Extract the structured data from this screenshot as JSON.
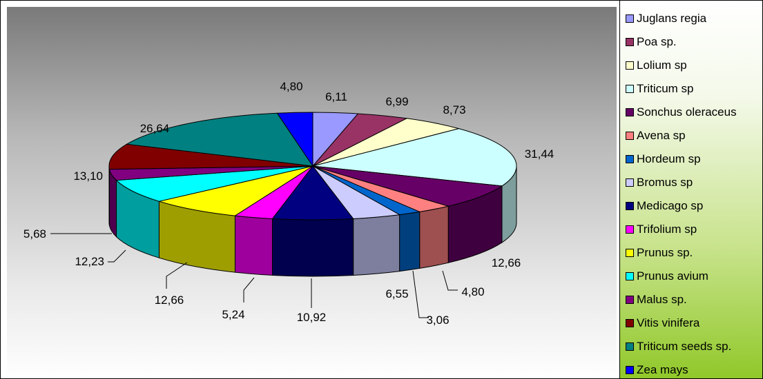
{
  "chart_data": {
    "type": "pie",
    "title": "",
    "legend_position": "right",
    "slices": [
      {
        "label": "Juglans regia",
        "value": 6.11,
        "value_label": "6,11",
        "color": "#9999ff"
      },
      {
        "label": "Poa sp.",
        "value": 6.99,
        "value_label": "6,99",
        "color": "#993366"
      },
      {
        "label": "Lolium sp",
        "value": 8.73,
        "value_label": "8,73",
        "color": "#ffffcc"
      },
      {
        "label": "Triticum sp",
        "value": 31.44,
        "value_label": "31,44",
        "color": "#ccffff"
      },
      {
        "label": "Sonchus  oleraceus",
        "value": 12.66,
        "value_label": "12,66",
        "color": "#660066"
      },
      {
        "label": "Avena sp",
        "value": 4.8,
        "value_label": "4,80",
        "color": "#ff8080"
      },
      {
        "label": "Hordeum sp",
        "value": 3.06,
        "value_label": "3,06",
        "color": "#0066cc"
      },
      {
        "label": "Bromus sp",
        "value": 6.55,
        "value_label": "6,55",
        "color": "#ccccff"
      },
      {
        "label": "Medicago sp",
        "value": 10.92,
        "value_label": "10,92",
        "color": "#000080"
      },
      {
        "label": "Trifolium sp",
        "value": 5.24,
        "value_label": "5,24",
        "color": "#ff00ff"
      },
      {
        "label": "Prunus sp.",
        "value": 12.66,
        "value_label": "12,66",
        "color": "#ffff00"
      },
      {
        "label": "Prunus avium",
        "value": 12.23,
        "value_label": "12,23",
        "color": "#00ffff"
      },
      {
        "label": "Malus sp.",
        "value": 5.68,
        "value_label": "5,68",
        "color": "#800080"
      },
      {
        "label": "Vitis vinifera",
        "value": 13.1,
        "value_label": "13,10",
        "color": "#800000"
      },
      {
        "label": "Triticum seeds sp.",
        "value": 26.64,
        "value_label": "26,64",
        "color": "#008080"
      },
      {
        "label": "Zea mays",
        "value": 4.8,
        "value_label": "4,80",
        "color": "#0000ff"
      }
    ]
  }
}
